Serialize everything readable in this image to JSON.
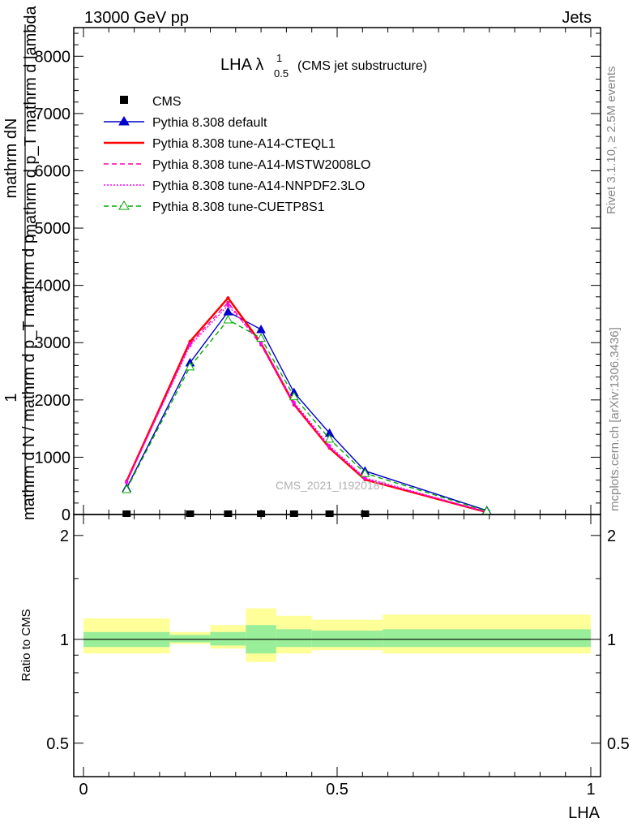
{
  "header": {
    "left": "13000 GeV pp",
    "right": "Jets"
  },
  "side_labels": {
    "rivet": "Rivet 3.1.10, ≥ 2.5M events",
    "mcplots": "mcplots.cern.ch [arXiv:1306.3436]"
  },
  "watermark": "CMS_2021_I1920187",
  "chart_data": [
    {
      "type": "line",
      "title_main": "LHA λ",
      "title_sup": "1",
      "title_sub": "0.5",
      "title_rest": "(CMS jet substructure)",
      "ylabel_top": "1",
      "ylabel_left": "mathrm dN",
      "ylabel_right": "mathrm d p_T mathrm d lambda",
      "ylabel_denom": "mathrm d N / mathrm d p_T mathrm d p",
      "xlim": [
        0,
        1
      ],
      "ylim": [
        0,
        8500
      ],
      "yticks": [
        0,
        1000,
        2000,
        3000,
        4000,
        5000,
        6000,
        7000,
        8000
      ],
      "legend_position": "top-left",
      "data": {
        "name": "CMS",
        "x": [
          0.085,
          0.21,
          0.285,
          0.35,
          0.415,
          0.485,
          0.555
        ],
        "y": [
          0,
          0,
          0,
          0,
          0,
          0,
          0
        ]
      },
      "series": [
        {
          "name": "Pythia 8.308 default",
          "color": "#0000cc",
          "style": "solid",
          "marker": "triangle-filled",
          "x": [
            0.085,
            0.21,
            0.285,
            0.35,
            0.415,
            0.485,
            0.555,
            0.795
          ],
          "y": [
            460,
            2650,
            3540,
            3230,
            2130,
            1420,
            760,
            70
          ]
        },
        {
          "name": "Pythia 8.308 tune-A14-CTEQL1",
          "color": "#ff0000",
          "style": "solid",
          "marker": "none",
          "x": [
            0.085,
            0.21,
            0.285,
            0.35,
            0.415,
            0.485,
            0.555,
            0.795
          ],
          "y": [
            580,
            3020,
            3780,
            2990,
            1920,
            1160,
            610,
            40
          ]
        },
        {
          "name": "Pythia 8.308 tune-A14-MSTW2008LO",
          "color": "#ff00aa",
          "style": "dashed",
          "marker": "none",
          "x": [
            0.085,
            0.21,
            0.285,
            0.35,
            0.415,
            0.485,
            0.555,
            0.795
          ],
          "y": [
            560,
            2980,
            3700,
            2960,
            1910,
            1170,
            620,
            40
          ]
        },
        {
          "name": "Pythia 8.308 tune-A14-NNPDF2.3LO",
          "color": "#ff00ff",
          "style": "dotted",
          "marker": "none",
          "x": [
            0.085,
            0.21,
            0.285,
            0.35,
            0.415,
            0.485,
            0.555,
            0.795
          ],
          "y": [
            570,
            2950,
            3650,
            3000,
            1960,
            1200,
            640,
            45
          ]
        },
        {
          "name": "Pythia 8.308 tune-CUETP8S1",
          "color": "#00aa00",
          "style": "dashed",
          "marker": "triangle-open",
          "x": [
            0.085,
            0.21,
            0.285,
            0.35,
            0.415,
            0.485,
            0.555,
            0.795
          ],
          "y": [
            440,
            2580,
            3400,
            3080,
            2060,
            1320,
            720,
            60
          ]
        }
      ]
    },
    {
      "type": "area",
      "ylabel": "Ratio to CMS",
      "xlabel": "LHA",
      "xlim": [
        0,
        1
      ],
      "ylim": [
        0.4,
        2.3
      ],
      "yticks": [
        0.5,
        1,
        2
      ],
      "xticks": [
        0,
        0.5,
        1
      ],
      "reference": 1.0,
      "bands": [
        {
          "x0": 0.0,
          "x1": 0.17,
          "inner": [
            0.95,
            1.05
          ],
          "outer": [
            0.91,
            1.15
          ]
        },
        {
          "x0": 0.17,
          "x1": 0.25,
          "inner": [
            0.98,
            1.03
          ],
          "outer": [
            0.97,
            1.05
          ]
        },
        {
          "x0": 0.25,
          "x1": 0.32,
          "inner": [
            0.96,
            1.05
          ],
          "outer": [
            0.94,
            1.1
          ]
        },
        {
          "x0": 0.32,
          "x1": 0.38,
          "inner": [
            0.91,
            1.1
          ],
          "outer": [
            0.86,
            1.23
          ]
        },
        {
          "x0": 0.38,
          "x1": 0.45,
          "inner": [
            0.95,
            1.07
          ],
          "outer": [
            0.91,
            1.17
          ]
        },
        {
          "x0": 0.45,
          "x1": 0.59,
          "inner": [
            0.95,
            1.06
          ],
          "outer": [
            0.93,
            1.14
          ]
        },
        {
          "x0": 0.59,
          "x1": 1.0,
          "inner": [
            0.95,
            1.07
          ],
          "outer": [
            0.91,
            1.18
          ]
        }
      ]
    }
  ]
}
